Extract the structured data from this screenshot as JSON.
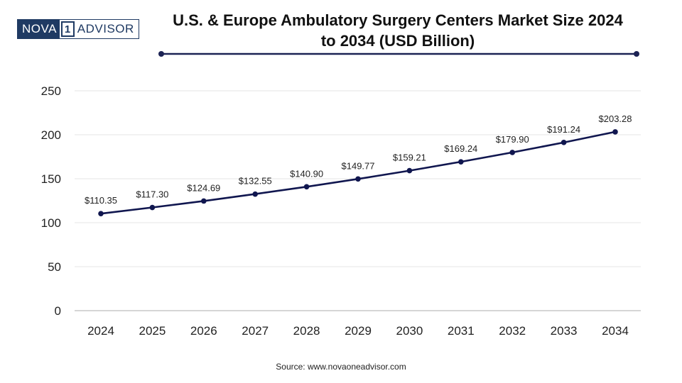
{
  "logo": {
    "part1": "NOVA",
    "part2": "1",
    "part3": "ADVISOR"
  },
  "chart_data": {
    "type": "line",
    "title": "U.S. & Europe Ambulatory Surgery Centers Market Size 2024 to 2034 (USD Billion)",
    "title_line1": "U.S. & Europe Ambulatory Surgery Centers Market Size 2024",
    "title_line2": "to 2034 (USD Billion)",
    "xlabel": "",
    "ylabel": "",
    "categories": [
      "2024",
      "2025",
      "2026",
      "2027",
      "2028",
      "2029",
      "2030",
      "2031",
      "2032",
      "2033",
      "2034"
    ],
    "values": [
      110.35,
      117.3,
      124.69,
      132.55,
      140.9,
      149.77,
      159.21,
      169.24,
      179.9,
      191.24,
      203.28
    ],
    "data_labels": [
      "$110.35",
      "$117.30",
      "$124.69",
      "$132.55",
      "$140.90",
      "$149.77",
      "$159.21",
      "$169.24",
      "$179.90",
      "$191.24",
      "$203.28"
    ],
    "yticks": [
      "0",
      "50",
      "100",
      "150",
      "200",
      "250"
    ],
    "ytick_values": [
      0,
      50,
      100,
      150,
      200,
      250
    ],
    "ylim": [
      0,
      250
    ],
    "grid": true,
    "legend": "none",
    "line_color": "#10164f",
    "grid_color": "#e6e6e6",
    "title_rule_color": "#1c2354"
  },
  "source": "Source: www.novaoneadvisor.com"
}
